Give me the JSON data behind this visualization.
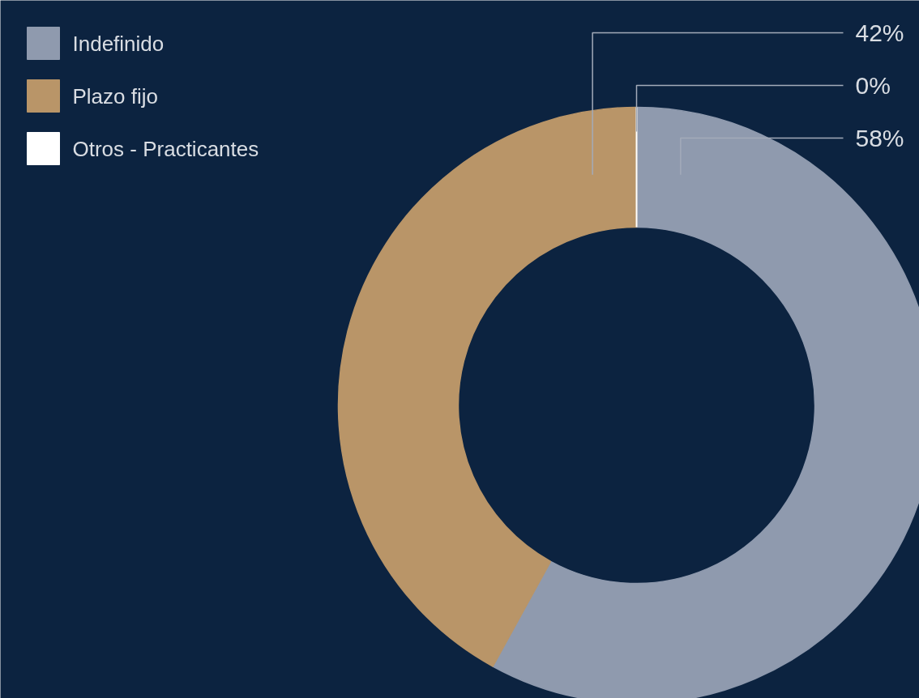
{
  "chart_data": {
    "type": "donut",
    "categories": [
      "Indefinido",
      "Plazo fijo",
      "Otros - Practicantes"
    ],
    "values": [
      58,
      42,
      0
    ],
    "colors": [
      "#8f9aae",
      "#b99568",
      "#ffffff"
    ],
    "value_labels": [
      "58%",
      "42%",
      "0%"
    ],
    "legend": "top left"
  }
}
